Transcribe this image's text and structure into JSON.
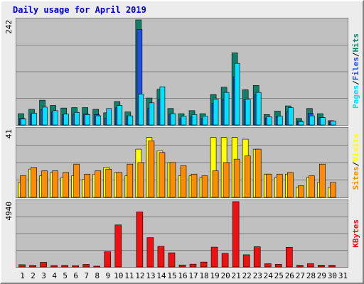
{
  "title": "Daily usage for April 2019",
  "colors": {
    "pages": "#00e0ff",
    "files": "#2050e0",
    "hits": "#10806a",
    "sites": "#ff8c00",
    "visits": "#ffff00",
    "kbytes": "#ee1111",
    "panel_bg": "#c0c0c0",
    "grid": "#808080",
    "weekend_label": "#2e8b57",
    "weekday_label": "#000000",
    "title": "#0000cc"
  },
  "legends": {
    "top": [
      "Pages",
      "Files",
      "Hits"
    ],
    "mid": [
      "Sites",
      "Visits"
    ],
    "bot": [
      "KBytes"
    ]
  },
  "chart_data": [
    {
      "type": "bar",
      "panel": "hits-files-pages",
      "ytick_label": "242",
      "ymax": 242,
      "categories": [
        "1",
        "2",
        "3",
        "4",
        "5",
        "6",
        "7",
        "8",
        "9",
        "10",
        "11",
        "12",
        "13",
        "14",
        "15",
        "16",
        "17",
        "18",
        "19",
        "20",
        "21",
        "22",
        "23",
        "24",
        "25",
        "26",
        "27",
        "28",
        "29",
        "30",
        "31"
      ],
      "weekend_days": [
        "6",
        "7",
        "13",
        "14",
        "20",
        "21",
        "27",
        "28"
      ],
      "series": [
        {
          "name": "Hits",
          "values": [
            26,
            36,
            57,
            45,
            39,
            40,
            40,
            36,
            28,
            54,
            30,
            242,
            62,
            82,
            38,
            26,
            33,
            26,
            70,
            87,
            166,
            81,
            91,
            24,
            32,
            44,
            15,
            38,
            26,
            10,
            0
          ]
        },
        {
          "name": "Files",
          "values": [
            15,
            25,
            36,
            30,
            24,
            25,
            25,
            24,
            16,
            40,
            19,
            220,
            38,
            59,
            25,
            15,
            20,
            15,
            50,
            60,
            110,
            58,
            70,
            16,
            20,
            30,
            9,
            27,
            17,
            7,
            0
          ]
        },
        {
          "name": "Pages",
          "values": [
            14,
            27,
            41,
            33,
            25,
            29,
            24,
            21,
            38,
            45,
            21,
            71,
            51,
            88,
            26,
            20,
            24,
            20,
            59,
            75,
            142,
            59,
            75,
            19,
            20,
            40,
            8,
            21,
            17,
            9,
            0
          ]
        }
      ]
    },
    {
      "type": "bar",
      "panel": "visits-sites",
      "ytick_label": "41",
      "ymax": 41,
      "categories": [
        "1",
        "2",
        "3",
        "4",
        "5",
        "6",
        "7",
        "8",
        "9",
        "10",
        "11",
        "12",
        "13",
        "14",
        "15",
        "16",
        "17",
        "18",
        "19",
        "20",
        "21",
        "22",
        "23",
        "24",
        "25",
        "26",
        "27",
        "28",
        "29",
        "30",
        "31"
      ],
      "series": [
        {
          "name": "Visits",
          "values": [
            9,
            17,
            13,
            15,
            12,
            13,
            11,
            14,
            18,
            15,
            13,
            29,
            36,
            28,
            21,
            13,
            13,
            12,
            36,
            36,
            36,
            35,
            29,
            14,
            12,
            14,
            6,
            12,
            9,
            6,
            0
          ]
        },
        {
          "name": "Sites",
          "values": [
            13,
            18,
            16,
            16,
            15,
            20,
            14,
            16,
            17,
            15,
            20,
            21,
            34,
            27,
            21,
            19,
            14,
            13,
            16,
            21,
            23,
            25,
            29,
            14,
            14,
            15,
            7,
            13,
            20,
            9,
            0
          ]
        }
      ]
    },
    {
      "type": "bar",
      "panel": "kbytes",
      "ytick_label": "4940",
      "ymax": 4940,
      "categories": [
        "1",
        "2",
        "3",
        "4",
        "5",
        "6",
        "7",
        "8",
        "9",
        "10",
        "11",
        "12",
        "13",
        "14",
        "15",
        "16",
        "17",
        "18",
        "19",
        "20",
        "21",
        "22",
        "23",
        "24",
        "25",
        "26",
        "27",
        "28",
        "29",
        "30",
        "31"
      ],
      "series": [
        {
          "name": "KBytes",
          "values": [
            170,
            120,
            350,
            110,
            120,
            100,
            190,
            60,
            1150,
            3180,
            0,
            4160,
            2220,
            1560,
            1070,
            150,
            210,
            370,
            1500,
            1030,
            4940,
            920,
            1530,
            250,
            200,
            1490,
            130,
            250,
            140,
            130,
            0
          ]
        }
      ]
    }
  ]
}
